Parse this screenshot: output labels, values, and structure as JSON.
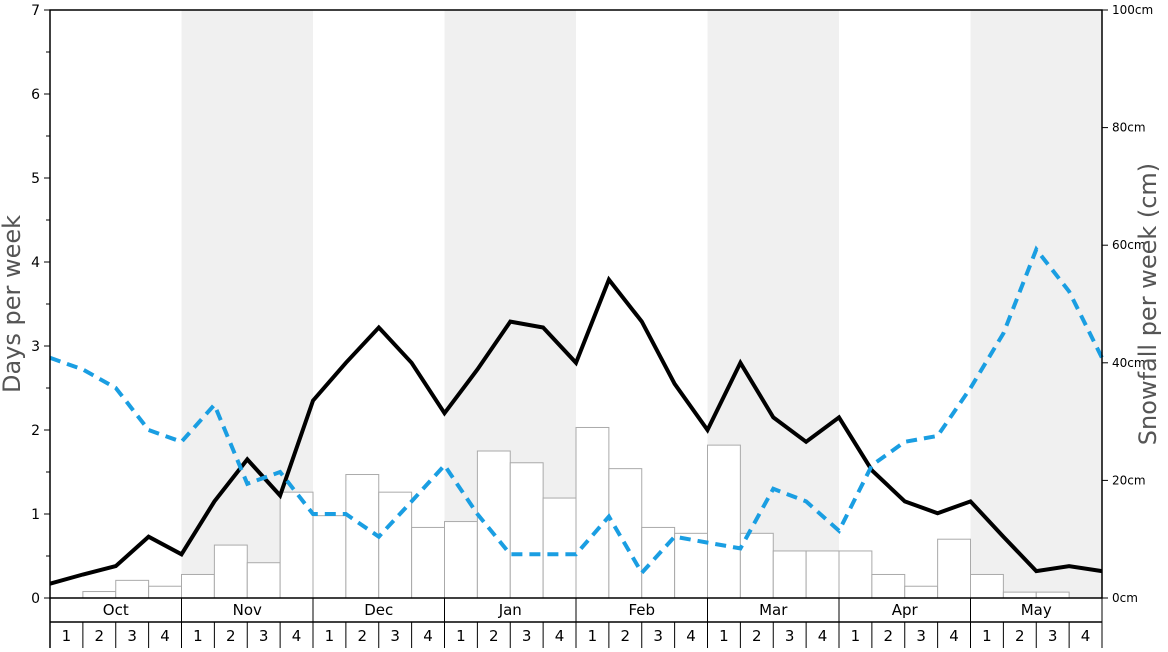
{
  "chart_data": {
    "type": "bar",
    "left_axis": {
      "label": "Days per week",
      "ylim": [
        0,
        7
      ],
      "ticks": [
        "0",
        "1",
        "2",
        "3",
        "4",
        "5",
        "6",
        "7"
      ]
    },
    "right_axis": {
      "label": "Snowfall per week (cm)",
      "ylim": [
        0,
        100
      ],
      "ticks": [
        "0cm",
        "20cm",
        "40cm",
        "60cm",
        "80cm",
        "100cm"
      ]
    },
    "months": [
      "Oct",
      "Nov",
      "Dec",
      "Jan",
      "Feb",
      "Mar",
      "Apr",
      "May"
    ],
    "week_labels": [
      "1",
      "2",
      "3",
      "4"
    ],
    "grid": false,
    "shaded_months": [
      "Nov",
      "Jan",
      "Mar",
      "May"
    ],
    "colors": {
      "bar_fill": "#ffffff",
      "bar_stroke": "#aaaaaa",
      "solid_line": "#000000",
      "dashed_line": "#1a9ee2",
      "shade": "#f0f0f0"
    },
    "series": [
      {
        "type": "bar",
        "axis": "right",
        "values": [
          0,
          1.1,
          3.0,
          2.0,
          4.0,
          9.0,
          6.0,
          18.0,
          14.0,
          21.0,
          18.0,
          12.0,
          13.0,
          25.0,
          23.0,
          17.0,
          29.0,
          22.0,
          12.0,
          11.0,
          26.0,
          11.0,
          8.0,
          8.0,
          8.0,
          4.0,
          2.0,
          10.0,
          4.0,
          1.0,
          1.0,
          0
        ]
      },
      {
        "type": "line",
        "style": "solid",
        "axis": "left",
        "values": [
          0.17,
          0.28,
          0.38,
          0.73,
          0.52,
          1.15,
          1.65,
          1.22,
          2.35,
          2.8,
          3.22,
          2.8,
          2.2,
          2.72,
          3.29,
          3.22,
          2.8,
          3.79,
          3.29,
          2.55,
          2.0,
          2.8,
          2.15,
          1.86,
          2.15,
          1.52,
          1.15,
          1.01,
          1.15,
          0.73,
          0.32,
          0.38,
          0.32
        ]
      },
      {
        "type": "line",
        "style": "dashed",
        "axis": "left",
        "values": [
          2.86,
          2.72,
          2.5,
          2.0,
          1.86,
          2.3,
          1.36,
          1.5,
          1.0,
          1.0,
          0.73,
          1.15,
          1.58,
          1.0,
          0.52,
          0.52,
          0.52,
          0.97,
          0.3,
          0.73,
          0.66,
          0.59,
          1.3,
          1.15,
          0.8,
          1.58,
          1.86,
          1.93,
          2.5,
          3.15,
          4.15,
          3.65,
          2.86
        ]
      }
    ]
  }
}
